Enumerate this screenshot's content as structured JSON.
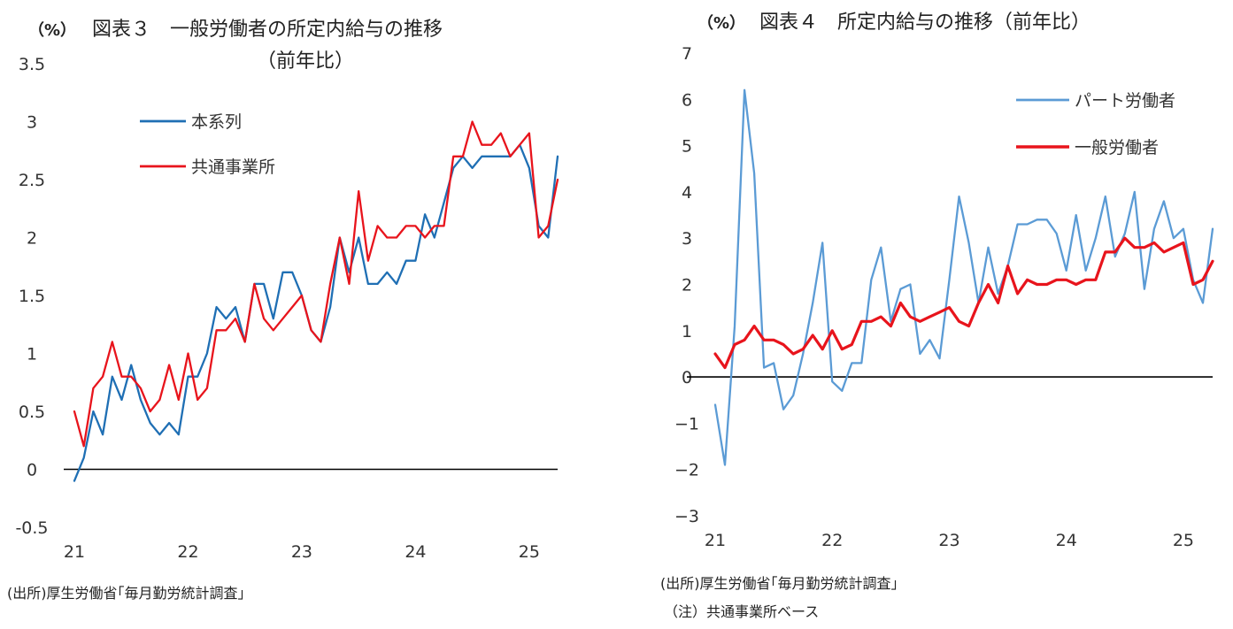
{
  "charts": [
    {
      "unit_label": "（%）",
      "title_line1": "図表３　一般労働者の所定内給与の推移",
      "title_line2": "（前年比）",
      "source": "(出所)厚生労働省｢毎月勤労統計調査｣",
      "note": ""
    },
    {
      "unit_label": "（%）",
      "title_line1": "図表４　所定内給与の推移（前年比）",
      "title_line2": "",
      "source": "(出所)厚生労働省｢毎月勤労統計調査｣",
      "note": "（注）共通事業所ベース"
    }
  ],
  "chart_data": [
    {
      "type": "line",
      "title": "図表３　一般労働者の所定内給与の推移（前年比）",
      "ylabel": "（%）",
      "xlabel": "",
      "ylim": [
        -0.5,
        3.5
      ],
      "yticks": [
        -0.5,
        0,
        0.5,
        1,
        1.5,
        2,
        2.5,
        3,
        3.5
      ],
      "ytick_labels": [
        "-0.5",
        "0",
        "0.5",
        "1",
        "1.5",
        "2",
        "2.5",
        "3",
        "3.5"
      ],
      "xlim": [
        21,
        25.25
      ],
      "xticks": [
        21,
        22,
        23,
        24,
        25
      ],
      "xtick_labels": [
        "21",
        "22",
        "23",
        "24",
        "25"
      ],
      "zero_line": true,
      "grid": false,
      "legend_position": "top-left",
      "series": [
        {
          "name": "本系列",
          "color": "#1f6fb4",
          "x": [
            21.0,
            21.0833,
            21.1667,
            21.25,
            21.3333,
            21.4167,
            21.5,
            21.5833,
            21.6667,
            21.75,
            21.8333,
            21.9167,
            22.0,
            22.0833,
            22.1667,
            22.25,
            22.3333,
            22.4167,
            22.5,
            22.5833,
            22.6667,
            22.75,
            22.8333,
            22.9167,
            23.0,
            23.0833,
            23.1667,
            23.25,
            23.3333,
            23.4167,
            23.5,
            23.5833,
            23.6667,
            23.75,
            23.8333,
            23.9167,
            24.0,
            24.0833,
            24.1667,
            24.25,
            24.3333,
            24.4167,
            24.5,
            24.5833,
            24.6667,
            24.75,
            24.8333,
            24.9167,
            25.0,
            25.0833,
            25.1667,
            25.25
          ],
          "y": [
            -0.1,
            0.1,
            0.5,
            0.3,
            0.8,
            0.6,
            0.9,
            0.6,
            0.4,
            0.3,
            0.4,
            0.3,
            0.8,
            0.8,
            1.0,
            1.4,
            1.3,
            1.4,
            1.1,
            1.6,
            1.6,
            1.3,
            1.7,
            1.7,
            1.5,
            1.2,
            1.1,
            1.4,
            2.0,
            1.7,
            2.0,
            1.6,
            1.6,
            1.7,
            1.6,
            1.8,
            1.8,
            2.2,
            2.0,
            2.3,
            2.6,
            2.7,
            2.6,
            2.7,
            2.7,
            2.7,
            2.7,
            2.8,
            2.6,
            2.1,
            2.0,
            2.7
          ]
        },
        {
          "name": "共通事業所",
          "color": "#e8141c",
          "x": [
            21.0,
            21.0833,
            21.1667,
            21.25,
            21.3333,
            21.4167,
            21.5,
            21.5833,
            21.6667,
            21.75,
            21.8333,
            21.9167,
            22.0,
            22.0833,
            22.1667,
            22.25,
            22.3333,
            22.4167,
            22.5,
            22.5833,
            22.6667,
            22.75,
            22.8333,
            22.9167,
            23.0,
            23.0833,
            23.1667,
            23.25,
            23.3333,
            23.4167,
            23.5,
            23.5833,
            23.6667,
            23.75,
            23.8333,
            23.9167,
            24.0,
            24.0833,
            24.1667,
            24.25,
            24.3333,
            24.4167,
            24.5,
            24.5833,
            24.6667,
            24.75,
            24.8333,
            24.9167,
            25.0,
            25.0833,
            25.1667,
            25.25
          ],
          "y": [
            0.5,
            0.2,
            0.7,
            0.8,
            1.1,
            0.8,
            0.8,
            0.7,
            0.5,
            0.6,
            0.9,
            0.6,
            1.0,
            0.6,
            0.7,
            1.2,
            1.2,
            1.3,
            1.1,
            1.6,
            1.3,
            1.2,
            1.3,
            1.4,
            1.5,
            1.2,
            1.1,
            1.6,
            2.0,
            1.6,
            2.4,
            1.8,
            2.1,
            2.0,
            2.0,
            2.1,
            2.1,
            2.0,
            2.1,
            2.1,
            2.7,
            2.7,
            3.0,
            2.8,
            2.8,
            2.9,
            2.7,
            2.8,
            2.9,
            2.0,
            2.1,
            2.5
          ]
        }
      ]
    },
    {
      "type": "line",
      "title": "図表４　所定内給与の推移（前年比）",
      "ylabel": "（%）",
      "xlabel": "",
      "ylim": [
        -3,
        7
      ],
      "yticks": [
        -3,
        -2,
        -1,
        0,
        1,
        2,
        3,
        4,
        5,
        6,
        7
      ],
      "ytick_labels": [
        "−3",
        "−2",
        "−1",
        "0",
        "1",
        "2",
        "3",
        "4",
        "5",
        "6",
        "7"
      ],
      "xlim": [
        21,
        25.25
      ],
      "xticks": [
        21,
        22,
        23,
        24,
        25
      ],
      "xtick_labels": [
        "21",
        "22",
        "23",
        "24",
        "25"
      ],
      "zero_line": true,
      "grid": false,
      "legend_position": "top-right",
      "series": [
        {
          "name": "パート労働者",
          "color": "#5b9bd5",
          "x": [
            21.0,
            21.0833,
            21.1667,
            21.25,
            21.3333,
            21.4167,
            21.5,
            21.5833,
            21.6667,
            21.75,
            21.8333,
            21.9167,
            22.0,
            22.0833,
            22.1667,
            22.25,
            22.3333,
            22.4167,
            22.5,
            22.5833,
            22.6667,
            22.75,
            22.8333,
            22.9167,
            23.0,
            23.0833,
            23.1667,
            23.25,
            23.3333,
            23.4167,
            23.5,
            23.5833,
            23.6667,
            23.75,
            23.8333,
            23.9167,
            24.0,
            24.0833,
            24.1667,
            24.25,
            24.3333,
            24.4167,
            24.5,
            24.5833,
            24.6667,
            24.75,
            24.8333,
            24.9167,
            25.0,
            25.0833,
            25.1667,
            25.25
          ],
          "y": [
            -0.6,
            -1.9,
            1.1,
            6.2,
            4.4,
            0.2,
            0.3,
            -0.7,
            -0.4,
            0.5,
            1.6,
            2.9,
            -0.1,
            -0.3,
            0.3,
            0.3,
            2.1,
            2.8,
            1.2,
            1.9,
            2.0,
            0.5,
            0.8,
            0.4,
            2.1,
            3.9,
            2.9,
            1.6,
            2.8,
            1.8,
            2.4,
            3.3,
            3.3,
            3.4,
            3.4,
            3.1,
            2.3,
            3.5,
            2.3,
            3.0,
            3.9,
            2.6,
            3.1,
            4.0,
            1.9,
            3.2,
            3.8,
            3.0,
            3.2,
            2.1,
            1.6,
            3.2
          ]
        },
        {
          "name": "一般労働者",
          "color": "#e8141c",
          "x": [
            21.0,
            21.0833,
            21.1667,
            21.25,
            21.3333,
            21.4167,
            21.5,
            21.5833,
            21.6667,
            21.75,
            21.8333,
            21.9167,
            22.0,
            22.0833,
            22.1667,
            22.25,
            22.3333,
            22.4167,
            22.5,
            22.5833,
            22.6667,
            22.75,
            22.8333,
            22.9167,
            23.0,
            23.0833,
            23.1667,
            23.25,
            23.3333,
            23.4167,
            23.5,
            23.5833,
            23.6667,
            23.75,
            23.8333,
            23.9167,
            24.0,
            24.0833,
            24.1667,
            24.25,
            24.3333,
            24.4167,
            24.5,
            24.5833,
            24.6667,
            24.75,
            24.8333,
            24.9167,
            25.0,
            25.0833,
            25.1667,
            25.25
          ],
          "y": [
            0.5,
            0.2,
            0.7,
            0.8,
            1.1,
            0.8,
            0.8,
            0.7,
            0.5,
            0.6,
            0.9,
            0.6,
            1.0,
            0.6,
            0.7,
            1.2,
            1.2,
            1.3,
            1.1,
            1.6,
            1.3,
            1.2,
            1.3,
            1.4,
            1.5,
            1.2,
            1.1,
            1.6,
            2.0,
            1.6,
            2.4,
            1.8,
            2.1,
            2.0,
            2.0,
            2.1,
            2.1,
            2.0,
            2.1,
            2.1,
            2.7,
            2.7,
            3.0,
            2.8,
            2.8,
            2.9,
            2.7,
            2.8,
            2.9,
            2.0,
            2.1,
            2.5
          ]
        }
      ]
    }
  ]
}
